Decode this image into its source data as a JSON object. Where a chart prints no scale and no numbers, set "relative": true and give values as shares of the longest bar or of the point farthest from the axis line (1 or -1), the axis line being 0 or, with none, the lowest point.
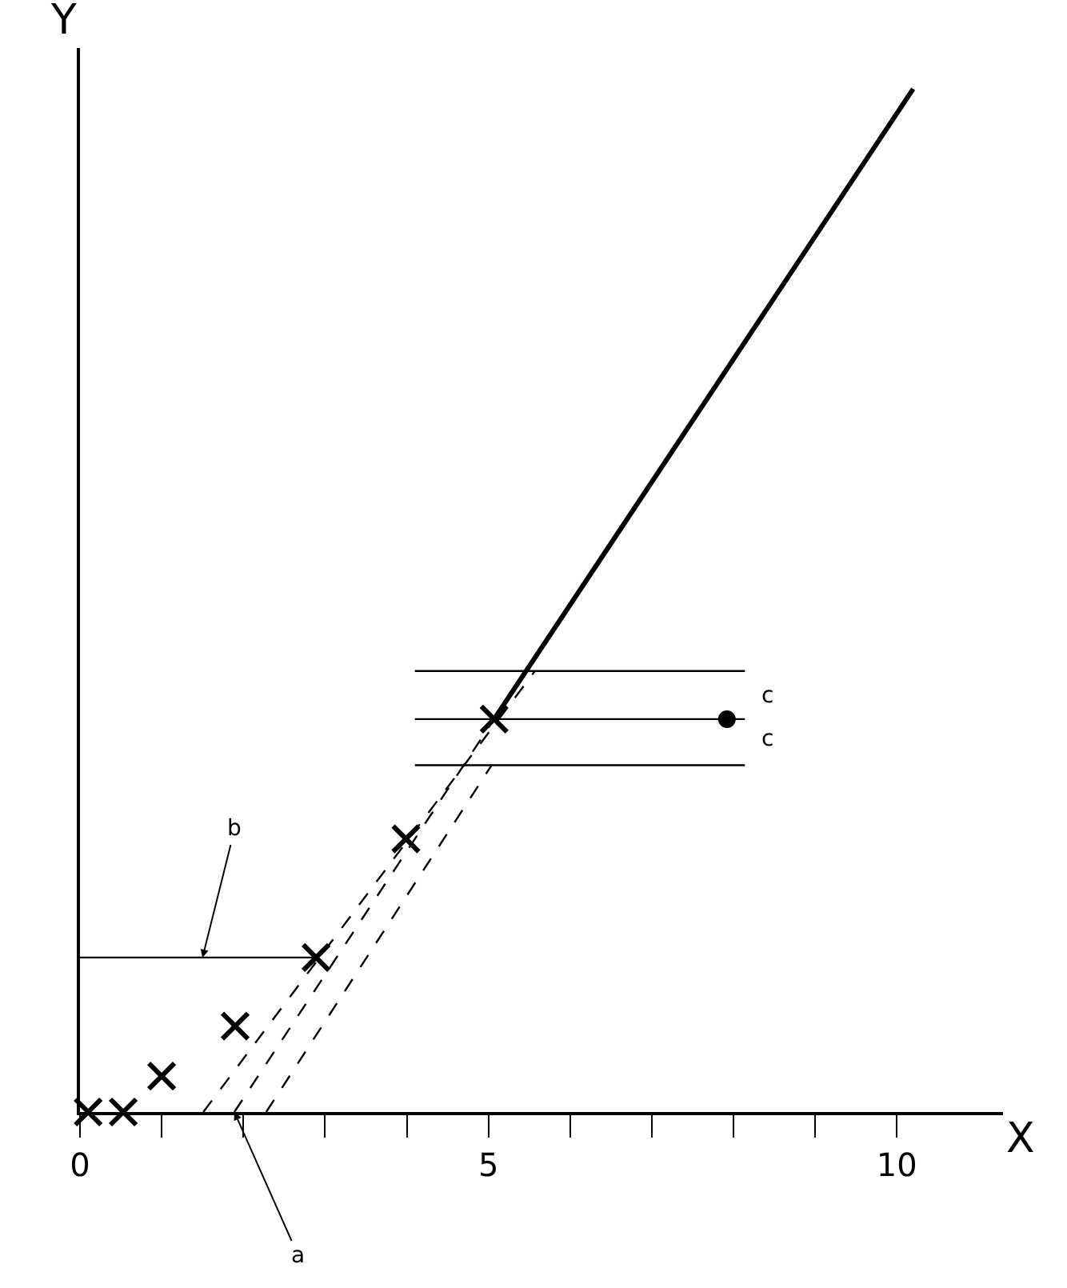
{
  "chart_data": {
    "type": "scatter",
    "xlabel": "X",
    "ylabel": "Y",
    "relative": true,
    "xlim": [
      0,
      11.3
    ],
    "xticks": [
      0,
      {
        "value": 1,
        "label": null
      },
      {
        "value": 2,
        "label": null
      },
      {
        "value": 3,
        "label": null
      },
      {
        "value": 4,
        "label": null
      },
      5,
      {
        "value": 6,
        "label": null
      },
      {
        "value": 7,
        "label": null
      },
      {
        "value": 8,
        "label": null
      },
      {
        "value": 9,
        "label": null
      },
      10
    ],
    "series": [
      {
        "type": "line",
        "color": "#000000",
        "marker": "none",
        "line_style": "solid",
        "x": [
          5.07,
          10.2
        ],
        "values": [
          0.384,
          1
        ]
      },
      {
        "type": "line",
        "color": "#000000",
        "marker": "none",
        "line_style": "dashed",
        "x": [
          1.51,
          5.57
        ],
        "values": [
          0,
          0.431
        ]
      },
      {
        "type": "line",
        "color": "#000000",
        "marker": "none",
        "line_style": "dashed",
        "x": [
          1.89,
          5.07
        ],
        "values": [
          0,
          0.384
        ]
      },
      {
        "type": "line",
        "color": "#000000",
        "marker": "none",
        "line_style": "dashed",
        "x": [
          2.28,
          5.04
        ],
        "values": [
          0,
          0.339
        ]
      },
      {
        "type": "line",
        "color": "#000000",
        "marker": "none",
        "line_style": "solid",
        "x": [
          4.1,
          8.14
        ],
        "values": [
          0.431,
          0.431
        ]
      },
      {
        "type": "line",
        "color": "#000000",
        "marker": "none",
        "line_style": "solid",
        "x": [
          4.1,
          8.14
        ],
        "values": [
          0.384,
          0.384
        ]
      },
      {
        "type": "line",
        "color": "#000000",
        "marker": "none",
        "line_style": "solid",
        "x": [
          4.1,
          8.14
        ],
        "values": [
          0.339,
          0.339
        ]
      },
      {
        "type": "line",
        "color": "#000000",
        "marker": "none",
        "line_style": "solid",
        "x": [
          0,
          2.89
        ],
        "values": [
          0.151,
          0.151
        ]
      },
      {
        "type": "scatter",
        "color": "#000000",
        "marker": "circle",
        "x": [
          7.92
        ],
        "values": [
          0.384
        ]
      },
      {
        "color": "#000000",
        "marker": "cross",
        "x": [
          0.1,
          0.53,
          1.0,
          1.9,
          2.89,
          3.99,
          5.07
        ],
        "values": [
          0,
          0,
          0.035,
          0.084,
          0.151,
          0.267,
          0.384
        ]
      }
    ],
    "annotations": [
      {
        "text": "a",
        "x": 1.89,
        "y": 0
      },
      {
        "text": "b",
        "x": 1.5,
        "y": 0.151
      },
      {
        "text": "c",
        "x": 8.14,
        "y": 0.431
      },
      {
        "text": "c",
        "x": 8.14,
        "y": 0.339
      }
    ]
  }
}
